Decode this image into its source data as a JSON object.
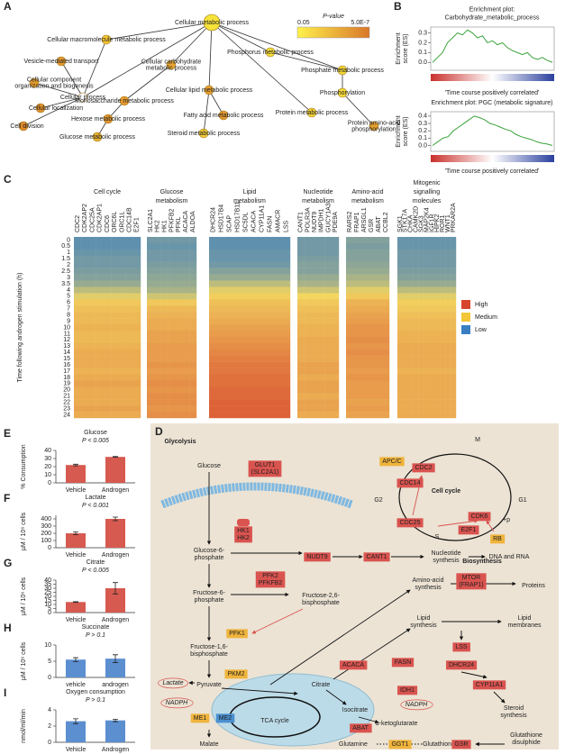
{
  "panel_a": {
    "label": "A",
    "colorbar": {
      "title": "P-value",
      "min_label": "0.05",
      "max_label": "5.0E-7"
    },
    "nodes": [
      {
        "label": "Cellular metabolic process",
        "color": "#f7e23a"
      },
      {
        "label": "Cellular macromolecule metabolic process",
        "color": "#f2c531"
      },
      {
        "label": "Phosphorus metabolic process",
        "color": "#f5dc3a"
      },
      {
        "label": "Vesicle-mediated transport",
        "color": "#e59a2e"
      },
      {
        "label": [
          "Cellular component",
          "organization and biogenesis"
        ],
        "color": "#e39a2e"
      },
      {
        "label": [
          "Cellular carbohydrate",
          "metabolic process"
        ],
        "color": "#e8a530"
      },
      {
        "label": "Phosphate metabolic process",
        "color": "#f3d838"
      },
      {
        "label": "Cellular process",
        "color": "#ffffff"
      },
      {
        "label": "Cellular lipid metabolic process",
        "color": "#e79f2f"
      },
      {
        "label": "Monosaccharide metabolic process",
        "color": "#e5992e"
      },
      {
        "label": "Phosphorylation",
        "color": "#f4da39"
      },
      {
        "label": "Cellular localization",
        "color": "#e08f2c"
      },
      {
        "label": "Hexose metabolic process",
        "color": "#e3962d"
      },
      {
        "label": "Fatty acid metabolic process",
        "color": "#e4982e"
      },
      {
        "label": "Protein metabolic process",
        "color": "#f2d236"
      },
      {
        "label": "Cell division",
        "color": "#dd892b"
      },
      {
        "label": "Glucose metabolic process",
        "color": "#eab131"
      },
      {
        "label": "Steroid metabolic process",
        "color": "#f0cb35"
      },
      {
        "label": [
          "Protein amino-acid",
          "phosphorylation"
        ],
        "color": "#e7a22f"
      }
    ]
  },
  "panel_b": {
    "label": "B",
    "plots": [
      {
        "title": [
          "Enrichment plot:",
          "Carbohydrate_metabolic_process"
        ],
        "y_label": [
          "Enrichment",
          "score (ES)"
        ],
        "x_label": "'Time course positively correlated'",
        "color": "#3aa33a",
        "ylim": [
          -0.08,
          0.36
        ],
        "yticks": [
          {
            "value": 0,
            "label": "0.0"
          },
          0.1,
          0.2,
          0.3
        ],
        "values": [
          0,
          0.05,
          0.1,
          0.2,
          0.25,
          0.3,
          0.28,
          0.33,
          0.3,
          0.25,
          0.27,
          0.2,
          0.22,
          0.18,
          0.2,
          0.15,
          0.12,
          0.1,
          0.08,
          0.1,
          0.05,
          0.03,
          0.05,
          0.02,
          0
        ]
      },
      {
        "title": [
          "Enrichment plot: PGC (metabolic signature)"
        ],
        "y_label": [
          "Enrichment",
          "score (ES)"
        ],
        "x_label": "'Time course positively correlated'",
        "color": "#3aa33a",
        "ylim": [
          -0.08,
          0.46
        ],
        "yticks": [
          {
            "value": 0,
            "label": "0.0"
          },
          0.1,
          0.2,
          0.3,
          0.4
        ],
        "values": [
          0,
          0.05,
          0.1,
          0.12,
          0.2,
          0.25,
          0.3,
          0.35,
          0.4,
          0.38,
          0.35,
          0.3,
          0.28,
          0.25,
          0.22,
          0.2,
          0.15,
          0.12,
          0.1,
          0.08,
          0.05,
          0.03,
          0.02,
          0
        ]
      }
    ]
  },
  "panel_c": {
    "label": "C",
    "y_label": "Time following androgen stimulation (h)",
    "times": [
      0,
      0.5,
      1,
      1.5,
      2,
      2.5,
      3,
      3.5,
      4,
      5,
      6,
      7,
      8,
      9,
      10,
      11,
      12,
      13,
      14,
      15,
      16,
      17,
      18,
      19,
      20,
      21,
      22,
      23,
      24
    ],
    "legend": [
      {
        "name": "High",
        "color": "#d7452d"
      },
      {
        "name": "Medium",
        "color": "#f3c638"
      },
      {
        "name": "Low",
        "color": "#3a7fc2"
      }
    ],
    "groups": [
      {
        "title": [
          "Cell cycle"
        ],
        "genes": [
          "CDC2",
          "CDK2AP2",
          "CDC25A",
          "CDK2AP1",
          "CDC6",
          "ORC6L",
          "ORC1L",
          "CDC14B",
          "E2F1"
        ],
        "levels": [
          -0.8,
          -0.8,
          -0.75,
          -0.7,
          -0.7,
          -0.65,
          -0.6,
          -0.5,
          -0.3,
          -0.1,
          0.1,
          0.15,
          0.2,
          0.2,
          0.25,
          0.2,
          0.2,
          0.25,
          0.3,
          0.3,
          0.3,
          0.25,
          0.3,
          0.35,
          0.3,
          0.3,
          0.3,
          0.35,
          0.3
        ]
      },
      {
        "title": [
          "Glucose",
          "metabolism"
        ],
        "genes": [
          "SLC2A1",
          "HK2",
          "HK1",
          "PFKFB2",
          "PFKL",
          "ACACA",
          "ALDOA"
        ],
        "levels": [
          -0.7,
          -0.75,
          -0.7,
          -0.7,
          -0.65,
          -0.6,
          -0.55,
          -0.5,
          -0.4,
          -0.2,
          0.1,
          0.2,
          0.25,
          0.3,
          0.3,
          0.35,
          0.35,
          0.4,
          0.4,
          0.4,
          0.45,
          0.4,
          0.45,
          0.5,
          0.45,
          0.5,
          0.5,
          0.45,
          0.5
        ]
      },
      {
        "title": [
          "Lipid",
          "metabolism"
        ],
        "genes": [
          "DHCR24",
          "HSD17B4",
          "SCAP",
          "HSD17B11",
          "SC5DL",
          "ACACA",
          "CYP11A1",
          "FASN",
          "AMACR",
          "LSS"
        ],
        "levels": [
          -0.8,
          -0.8,
          -0.75,
          -0.75,
          -0.7,
          -0.6,
          -0.5,
          -0.3,
          -0.1,
          0.05,
          0.15,
          0.2,
          0.25,
          0.3,
          0.35,
          0.4,
          0.45,
          0.5,
          0.55,
          0.6,
          0.65,
          0.65,
          0.7,
          0.7,
          0.75,
          0.75,
          0.8,
          0.8,
          0.8
        ]
      },
      {
        "title": [
          "Nucleotide",
          "metabolism"
        ],
        "genes": [
          "CANT1",
          "POLR3A",
          "NUDT9",
          "IMPDH1",
          "GUCY1A3",
          "PDE9A"
        ],
        "levels": [
          -0.7,
          -0.7,
          -0.7,
          -0.65,
          -0.6,
          -0.6,
          -0.5,
          -0.4,
          -0.2,
          0,
          0.1,
          0.15,
          0.2,
          0.2,
          0.25,
          0.25,
          0.3,
          0.3,
          0.3,
          0.3,
          0.35,
          0.35,
          0.3,
          0.35,
          0.35,
          0.3,
          0.35,
          0.35,
          0.3
        ]
      },
      {
        "title": [
          "Amino-acid",
          "metabolism"
        ],
        "genes": [
          "RARS2",
          "FRAP1",
          "ARSGL1",
          "GSR",
          "ABAT",
          "CCBL2"
        ],
        "levels": [
          -0.6,
          -0.65,
          -0.6,
          -0.6,
          -0.55,
          -0.5,
          -0.4,
          -0.3,
          -0.1,
          0.1,
          0.25,
          0.3,
          0.35,
          0.4,
          0.45,
          0.45,
          0.5,
          0.45,
          0.5,
          0.45,
          0.45,
          0.4,
          0.45,
          0.4,
          0.4,
          0.4,
          0.35,
          0.4,
          0.35
        ]
      },
      {
        "title": [
          "Mitogenic",
          "signalling",
          "molecules"
        ],
        "genes": [
          "SGK1",
          "STK17A",
          "CHKA",
          "CAMK2D",
          "SGK3",
          "MAP2K4",
          "IGF1R",
          "HIPK2",
          "ROR1",
          "WNT1",
          "PRKAR2A"
        ],
        "levels": [
          -0.75,
          -0.75,
          -0.7,
          -0.7,
          -0.7,
          -0.65,
          -0.6,
          -0.5,
          -0.3,
          -0.1,
          0.05,
          0.1,
          0.15,
          0.2,
          0.2,
          0.25,
          0.25,
          0.3,
          0.3,
          0.3,
          0.3,
          0.25,
          0.3,
          0.3,
          0.3,
          0.3,
          0.3,
          0.3,
          0.3
        ]
      }
    ]
  },
  "panel_d": {
    "label": "D",
    "items": [
      {
        "text": "Glycolysis",
        "style": "title"
      },
      {
        "text": "Glucose",
        "style": "text"
      },
      {
        "text": [
          "GLUT1",
          "(SLC2A1)"
        ],
        "style": "red"
      },
      {
        "text": [
          "HK1",
          "HK2"
        ],
        "style": "red"
      },
      {
        "text": [
          "Glucose-6-",
          "phosphate"
        ],
        "style": "text"
      },
      {
        "text": "NUDT9",
        "style": "red"
      },
      {
        "text": "CANT1",
        "style": "red"
      },
      {
        "text": [
          "Nucleotide",
          "synthesis"
        ],
        "style": "text"
      },
      {
        "text": "DNA and RNA",
        "style": "text"
      },
      {
        "text": [
          "PFK2",
          "PFKFB2"
        ],
        "style": "red"
      },
      {
        "text": [
          "Fructose-2,6-",
          "bisphosphate"
        ],
        "style": "text"
      },
      {
        "text": [
          "Fructose-6-",
          "phosphate"
        ],
        "style": "text"
      },
      {
        "text": "PFK1",
        "style": "yellow"
      },
      {
        "text": [
          "Fructose-1,6-",
          "bisphosphate"
        ],
        "style": "text"
      },
      {
        "text": "PKM2",
        "style": "yellow"
      },
      {
        "text": "Pyruvate",
        "style": "text"
      },
      {
        "text": "Lactate",
        "style": "oval"
      },
      {
        "text": "NADPH",
        "style": "oval"
      },
      {
        "text": "ME1",
        "style": "yellow"
      },
      {
        "text": "ME2",
        "style": "blue"
      },
      {
        "text": "Malate",
        "style": "text"
      },
      {
        "text": "TCA cycle",
        "style": "text"
      },
      {
        "text": "Citrate",
        "style": "text"
      },
      {
        "text": "ACACA",
        "style": "red"
      },
      {
        "text": "FASN",
        "style": "red"
      },
      {
        "text": [
          "Lipid",
          "synthesis"
        ],
        "style": "text"
      },
      {
        "text": [
          "Lipid",
          "membranes"
        ],
        "style": "text"
      },
      {
        "text": [
          "Amino-acid",
          "synthesis"
        ],
        "style": "text"
      },
      {
        "text": [
          "MTOR",
          "(FRAP1)"
        ],
        "style": "red"
      },
      {
        "text": "Proteins",
        "style": "text"
      },
      {
        "text": "LSS",
        "style": "red"
      },
      {
        "text": "DHCR24",
        "style": "red"
      },
      {
        "text": "CYP11A1",
        "style": "red"
      },
      {
        "text": [
          "Steroid",
          "synthesis"
        ],
        "style": "text"
      },
      {
        "text": "Isocitrate",
        "style": "text"
      },
      {
        "text": "IDH1",
        "style": "red"
      },
      {
        "text": "NADPH",
        "style": "oval"
      },
      {
        "text": "α-ketoglutarate",
        "style": "text"
      },
      {
        "text": "ABAT",
        "style": "red"
      },
      {
        "text": "Glutamine",
        "style": "text"
      },
      {
        "text": "GGT1",
        "style": "yellow"
      },
      {
        "text": "Glutathione",
        "style": "text"
      },
      {
        "text": "GSR",
        "style": "red"
      },
      {
        "text": [
          "Glutathione",
          "disulphide"
        ],
        "style": "text"
      },
      {
        "text": "M",
        "style": "text"
      },
      {
        "text": "APC/C",
        "style": "yellow"
      },
      {
        "text": "CDC2",
        "style": "red"
      },
      {
        "text": "CDC14",
        "style": "red"
      },
      {
        "text": "G2",
        "style": "text"
      },
      {
        "text": "Cell cycle",
        "style": "title"
      },
      {
        "text": "G1",
        "style": "text"
      },
      {
        "text": "CDC25",
        "style": "red"
      },
      {
        "text": "CDK6",
        "style": "red"
      },
      {
        "text": "E2F1",
        "style": "red"
      },
      {
        "text": "+p",
        "style": "text"
      },
      {
        "text": "RB",
        "style": "yellow"
      },
      {
        "text": "S",
        "style": "text"
      },
      {
        "text": "Biosynthesis",
        "style": "title"
      }
    ]
  },
  "bar_panels": [
    {
      "label": "E",
      "type": "bar",
      "title": "Glucose",
      "subtitle": "P < 0.005",
      "y_label": "% Consumption",
      "categories": [
        "Vehicle",
        "Androgen"
      ],
      "values": [
        22,
        32
      ],
      "errors": [
        1,
        0.5
      ],
      "color": "#d65a4f",
      "ylim": [
        0,
        40
      ],
      "yticks": [
        0,
        10,
        20,
        30,
        40
      ]
    },
    {
      "label": "F",
      "type": "bar",
      "title": "Lactate",
      "subtitle": "P < 0.001",
      "y_label": "µM / 10⁶ cells",
      "categories": [
        "Vehicle",
        "Androgen"
      ],
      "values": [
        200,
        400
      ],
      "errors": [
        20,
        25
      ],
      "color": "#d65a4f",
      "ylim": [
        0,
        450
      ],
      "yticks": [
        0,
        100,
        200,
        300,
        400
      ]
    },
    {
      "label": "G",
      "type": "bar",
      "title": "Citrate",
      "subtitle": "P < 0.005",
      "y_label": "µM / 10⁶ cells",
      "categories": [
        "Vehicle",
        "Androgen"
      ],
      "values": [
        13,
        30
      ],
      "errors": [
        0.5,
        7
      ],
      "color": "#d65a4f",
      "ylim": [
        0,
        40
      ],
      "yticks": [
        0,
        5,
        10,
        15,
        20,
        25,
        30,
        35,
        40
      ]
    },
    {
      "label": "H",
      "type": "bar",
      "title": "Succinate",
      "subtitle": "P > 0.1",
      "y_label": "µM / 10⁶ cells",
      "categories": [
        "vehicle",
        "androgen"
      ],
      "values": [
        5.5,
        5.8
      ],
      "errors": [
        0.6,
        1.2
      ],
      "color": "#5b8fd0",
      "ylim": [
        0,
        10
      ],
      "yticks": [
        0,
        5,
        10
      ]
    },
    {
      "label": "I",
      "type": "bar",
      "title": "Oxygen consumption",
      "subtitle": "P > 0.1",
      "y_label": "nmol/ml/min",
      "categories": [
        "Vehicle",
        "Androgen"
      ],
      "values": [
        2.6,
        2.7
      ],
      "errors": [
        0.3,
        0.15
      ],
      "color": "#5b8fd0",
      "ylim": [
        0,
        4
      ],
      "yticks": [
        0,
        2,
        4
      ]
    }
  ]
}
